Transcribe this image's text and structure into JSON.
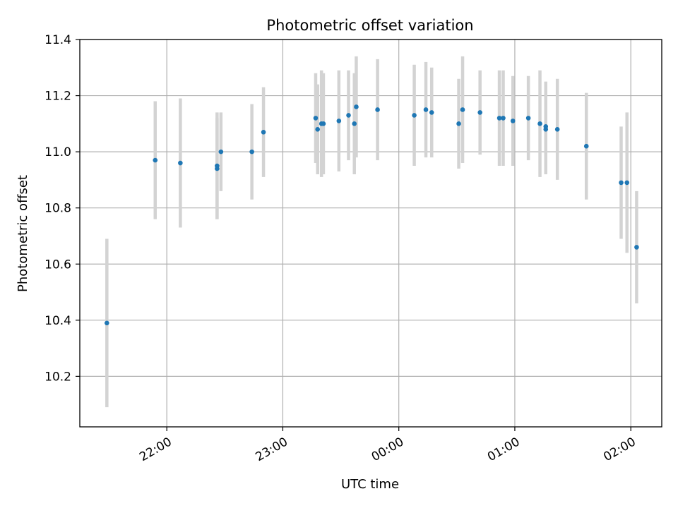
{
  "chart_data": {
    "type": "scatter",
    "title": "Photometric offset variation",
    "xlabel": "UTC time",
    "ylabel": "Photometric offset",
    "x_unit": "hours",
    "xlim": [
      "21:15",
      "02:16"
    ],
    "ylim": [
      10.02,
      11.4
    ],
    "x_ticks": [
      "22:00",
      "23:00",
      "00:00",
      "01:00",
      "02:00"
    ],
    "y_ticks": [
      "10.2",
      "10.4",
      "10.6",
      "10.8",
      "11.0",
      "11.2",
      "11.4"
    ],
    "grid": true,
    "colors": {
      "points": "#1f77b4",
      "errorbars": "#d3d3d3",
      "grid": "#b0b0b0"
    },
    "points": [
      {
        "t": "21:29",
        "y": 10.39,
        "err": 0.3
      },
      {
        "t": "21:54",
        "y": 10.97,
        "err": 0.21
      },
      {
        "t": "22:07",
        "y": 10.96,
        "err": 0.23
      },
      {
        "t": "22:26",
        "y": 10.94,
        "err": 0.18
      },
      {
        "t": "22:26",
        "y": 10.95,
        "err": 0.19
      },
      {
        "t": "22:28",
        "y": 11.0,
        "err": 0.14
      },
      {
        "t": "22:44",
        "y": 11.0,
        "err": 0.17
      },
      {
        "t": "22:50",
        "y": 11.07,
        "err": 0.16
      },
      {
        "t": "23:17",
        "y": 11.12,
        "err": 0.16
      },
      {
        "t": "23:18",
        "y": 11.08,
        "err": 0.16
      },
      {
        "t": "23:20",
        "y": 11.1,
        "err": 0.19
      },
      {
        "t": "23:21",
        "y": 11.1,
        "err": 0.18
      },
      {
        "t": "23:29",
        "y": 11.11,
        "err": 0.18
      },
      {
        "t": "23:34",
        "y": 11.13,
        "err": 0.16
      },
      {
        "t": "23:37",
        "y": 11.1,
        "err": 0.18
      },
      {
        "t": "23:38",
        "y": 11.16,
        "err": 0.18
      },
      {
        "t": "23:49",
        "y": 11.15,
        "err": 0.18
      },
      {
        "t": "00:08",
        "y": 11.13,
        "err": 0.18
      },
      {
        "t": "00:14",
        "y": 11.15,
        "err": 0.17
      },
      {
        "t": "00:17",
        "y": 11.14,
        "err": 0.16
      },
      {
        "t": "00:31",
        "y": 11.1,
        "err": 0.16
      },
      {
        "t": "00:33",
        "y": 11.15,
        "err": 0.19
      },
      {
        "t": "00:42",
        "y": 11.14,
        "err": 0.15
      },
      {
        "t": "00:52",
        "y": 11.12,
        "err": 0.17
      },
      {
        "t": "00:54",
        "y": 11.12,
        "err": 0.17
      },
      {
        "t": "00:59",
        "y": 11.11,
        "err": 0.16
      },
      {
        "t": "01:07",
        "y": 11.12,
        "err": 0.15
      },
      {
        "t": "01:13",
        "y": 11.1,
        "err": 0.19
      },
      {
        "t": "01:16",
        "y": 11.08,
        "err": 0.16
      },
      {
        "t": "01:16",
        "y": 11.09,
        "err": 0.16
      },
      {
        "t": "01:22",
        "y": 11.08,
        "err": 0.18
      },
      {
        "t": "01:37",
        "y": 11.02,
        "err": 0.19
      },
      {
        "t": "01:55",
        "y": 10.89,
        "err": 0.2
      },
      {
        "t": "01:58",
        "y": 10.89,
        "err": 0.25
      },
      {
        "t": "02:03",
        "y": 10.66,
        "err": 0.2
      }
    ]
  }
}
